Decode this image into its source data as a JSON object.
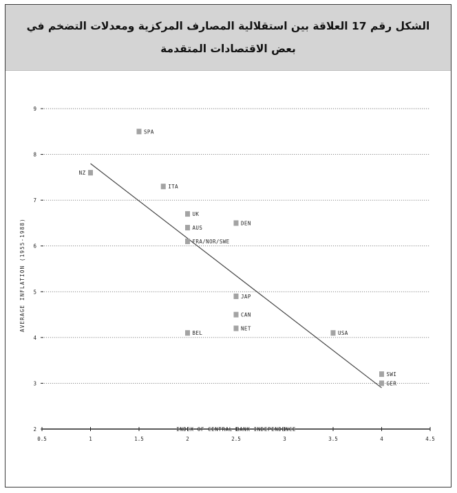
{
  "figure": {
    "title": "الشكل رقم 17 العلاقة بين استقلالية المصارف المركزية ومعدلات التضخم في بعض الاقتصادات المتقدمة"
  },
  "chart_data": {
    "type": "scatter",
    "xlabel": "INDEX OF CENTRAL BANK INDEPENDENCE",
    "ylabel": "AVERAGE INFLATION (1955-1988)",
    "xlim": [
      0.5,
      4.5
    ],
    "ylim": [
      2,
      9
    ],
    "x_ticks": [
      "0.5",
      "1",
      "1.5",
      "2",
      "2.5",
      "3",
      "3.5",
      "4",
      "4.5"
    ],
    "y_ticks": [
      "2",
      "3",
      "4",
      "5",
      "6",
      "7",
      "8",
      "9"
    ],
    "grid": "horizontal dotted",
    "points": [
      {
        "label": "NZ",
        "x": 1.0,
        "y": 7.6,
        "label_side": "left"
      },
      {
        "label": "SPA",
        "x": 1.5,
        "y": 8.5,
        "label_side": "right"
      },
      {
        "label": "ITA",
        "x": 1.75,
        "y": 7.3,
        "label_side": "right"
      },
      {
        "label": "UK",
        "x": 2.0,
        "y": 6.7,
        "label_side": "right"
      },
      {
        "label": "AUS",
        "x": 2.0,
        "y": 6.4,
        "label_side": "right"
      },
      {
        "label": "FRA/NOR/SWE",
        "x": 2.0,
        "y": 6.1,
        "label_side": "right"
      },
      {
        "label": "DEN",
        "x": 2.5,
        "y": 6.5,
        "label_side": "right"
      },
      {
        "label": "BEL",
        "x": 2.0,
        "y": 4.1,
        "label_side": "right"
      },
      {
        "label": "JAP",
        "x": 2.5,
        "y": 4.9,
        "label_side": "right"
      },
      {
        "label": "CAN",
        "x": 2.5,
        "y": 4.5,
        "label_side": "right"
      },
      {
        "label": "NET",
        "x": 2.5,
        "y": 4.2,
        "label_side": "right"
      },
      {
        "label": "USA",
        "x": 3.5,
        "y": 4.1,
        "label_side": "right"
      },
      {
        "label": "SWI",
        "x": 4.0,
        "y": 3.2,
        "label_side": "right"
      },
      {
        "label": "GER",
        "x": 4.0,
        "y": 3.0,
        "label_side": "right"
      }
    ],
    "trend_line": {
      "x": [
        1.0,
        4.0
      ],
      "y": [
        7.8,
        2.9
      ]
    },
    "colors": {
      "marker": "#a3a3a3",
      "line": "#444444",
      "axis": "#222222",
      "grid": "#777777"
    }
  }
}
